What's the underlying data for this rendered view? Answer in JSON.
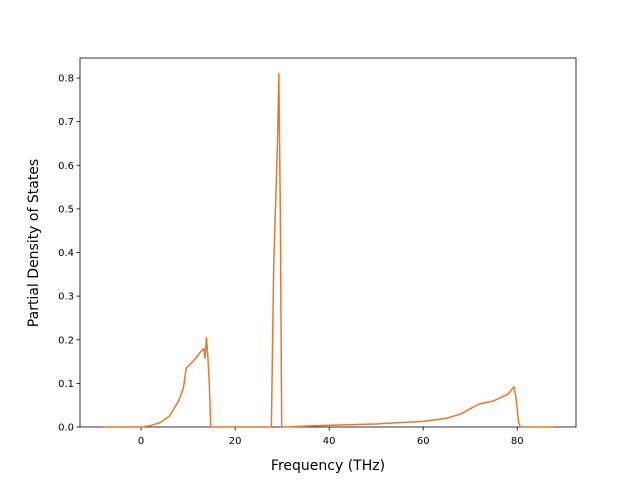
{
  "chart_data": {
    "type": "line",
    "x_label": "Frequency (THz)",
    "y_label": "Partial Density of States",
    "x": [
      -8.2,
      0,
      2,
      4,
      6,
      8,
      9,
      9.6,
      11,
      12.5,
      13.3,
      13.6,
      13.9,
      14.2,
      14.5,
      14.8,
      27.7,
      28.2,
      29.0,
      29.3,
      29.6,
      29.9,
      35,
      40,
      50,
      60,
      65,
      68,
      70,
      72,
      75,
      78,
      79.3,
      79.7,
      80.3,
      80.7,
      87.8
    ],
    "series": [
      {
        "color": "#e8792a",
        "values": [
          0,
          0,
          0.003,
          0.01,
          0.025,
          0.06,
          0.09,
          0.135,
          0.15,
          0.17,
          0.18,
          0.158,
          0.205,
          0.16,
          0.1,
          0,
          0,
          0.37,
          0.65,
          0.81,
          0.5,
          0,
          0.002,
          0.004,
          0.007,
          0.013,
          0.02,
          0.03,
          0.042,
          0.053,
          0.06,
          0.075,
          0.092,
          0.07,
          0.01,
          0,
          0
        ]
      }
    ],
    "xlim": [
      -13,
      92.5
    ],
    "ylim": [
      0,
      0.846
    ],
    "xticks": [
      0,
      20,
      40,
      60,
      80
    ],
    "yticks": [
      {
        "value": 0,
        "label": "0.0"
      },
      0.1,
      0.2,
      0.3,
      0.4,
      0.5,
      0.6,
      0.7,
      0.8
    ]
  }
}
